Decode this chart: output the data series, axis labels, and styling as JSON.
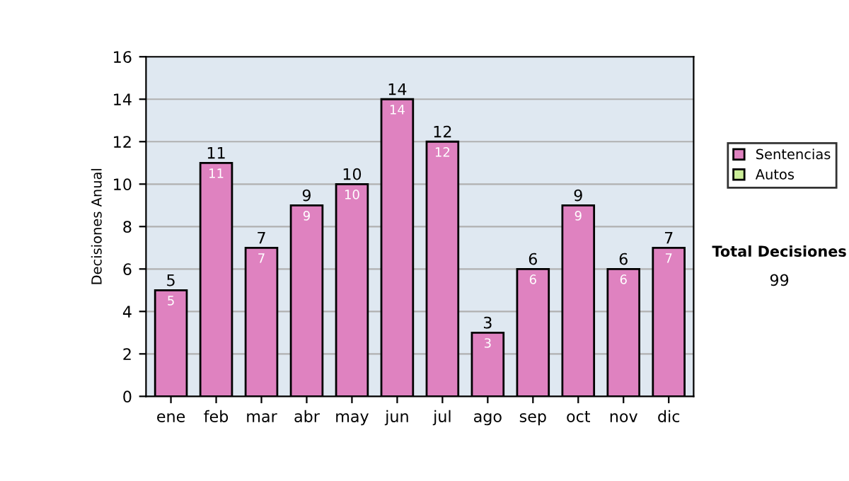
{
  "chart_data": {
    "type": "bar",
    "ylabel": "Decisiones Anual",
    "categories": [
      "ene",
      "feb",
      "mar",
      "abr",
      "may",
      "jun",
      "jul",
      "ago",
      "sep",
      "oct",
      "nov",
      "dic"
    ],
    "series": [
      {
        "name": "Sentencias",
        "color": "#df82c0",
        "values": [
          5,
          11,
          7,
          9,
          10,
          14,
          12,
          3,
          6,
          9,
          6,
          7
        ],
        "value_labels": [
          "5",
          "11",
          "7",
          "9",
          "10",
          "14",
          "12",
          "3",
          "6",
          "9",
          "6",
          "7"
        ]
      },
      {
        "name": "Autos",
        "color": "#ccee99",
        "values": [
          0,
          0,
          0,
          0,
          0,
          0,
          0,
          0,
          0,
          0,
          0,
          0
        ]
      }
    ],
    "totals": [
      "5",
      "11",
      "7",
      "9",
      "10",
      "14",
      "12",
      "3",
      "6",
      "9",
      "6",
      "7"
    ],
    "ylim": [
      0,
      16
    ],
    "yticks": [
      0,
      2,
      4,
      6,
      8,
      10,
      12,
      14,
      16
    ],
    "grid": "y",
    "legend": "right",
    "annotations": [
      "Total Decisiones",
      "99"
    ]
  }
}
